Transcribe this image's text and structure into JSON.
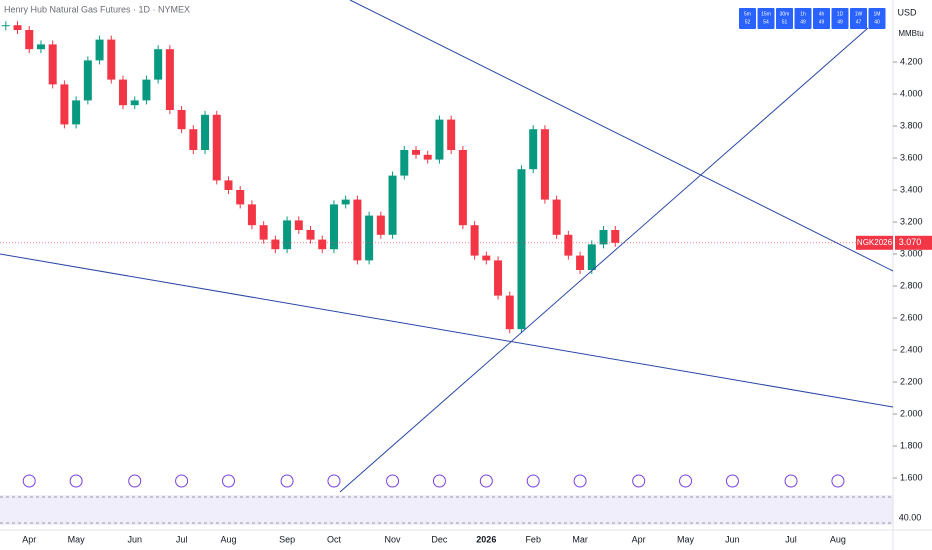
{
  "chart_data": {
    "type": "candlestick",
    "title": "Henry Hub Natural Gas Futures · 1D · NYMEX",
    "currency": "USD",
    "unit": "MMBtu",
    "symbol": "NGK2026",
    "last_price": {
      "value": 3.07,
      "label": "3.070"
    },
    "up_color": "#089981",
    "down_color": "#f23645",
    "categories": [
      null,
      null,
      "Apr",
      null,
      null,
      null,
      "May",
      null,
      null,
      null,
      null,
      "Jun",
      null,
      null,
      null,
      "Jul",
      null,
      null,
      null,
      "Aug",
      null,
      null,
      null,
      null,
      "Sep",
      null,
      null,
      null,
      "Oct",
      null,
      null,
      null,
      null,
      "Nov",
      null,
      null,
      null,
      "Dec",
      null,
      null,
      null,
      "2026",
      null,
      null,
      null,
      "Feb",
      null,
      null,
      null,
      "Mar",
      null,
      null,
      null,
      null,
      "Apr",
      null,
      null,
      null,
      "May",
      null,
      null,
      null,
      "Jun",
      null,
      null,
      null,
      null,
      "Jul",
      null,
      null,
      null,
      "Aug",
      null,
      null,
      null,
      null
    ],
    "values": [
      4.43,
      4.4,
      4.28,
      4.31,
      4.06,
      3.81,
      3.96,
      4.21,
      4.34,
      4.09,
      3.93,
      3.96,
      4.09,
      4.28,
      3.9,
      3.78,
      3.65,
      3.87,
      3.46,
      3.4,
      3.31,
      3.18,
      3.09,
      3.03,
      3.21,
      3.15,
      3.09,
      3.03,
      3.31,
      3.34,
      2.96,
      3.24,
      3.12,
      3.49,
      3.65,
      3.62,
      3.59,
      3.84,
      3.65,
      3.18,
      2.99,
      2.96,
      2.74,
      2.53,
      3.53,
      3.78,
      3.34,
      3.12,
      2.99,
      2.9,
      3.06,
      3.15,
      3.07,
      null,
      null,
      null,
      null,
      null,
      null,
      null,
      null,
      null,
      null,
      null,
      null,
      null,
      null,
      null,
      null,
      null,
      null,
      null,
      null,
      null,
      null,
      null
    ],
    "ylim": [
      1.525,
      4.5875
    ],
    "yticks": [
      {
        "value": 1.6,
        "label": "1.600"
      },
      {
        "value": 1.8,
        "label": "1.800"
      },
      {
        "value": 2.0,
        "label": "2.000"
      },
      {
        "value": 2.2,
        "label": "2.200"
      },
      {
        "value": 2.4,
        "label": "2.400"
      },
      {
        "value": 2.6,
        "label": "2.600"
      },
      {
        "value": 2.8,
        "label": "2.800"
      },
      {
        "value": 3.0,
        "label": "3.000"
      },
      {
        "value": 3.2,
        "label": "3.200"
      },
      {
        "value": 3.4,
        "label": "3.400"
      },
      {
        "value": 3.6,
        "label": "3.600"
      },
      {
        "value": 3.8,
        "label": "3.800"
      },
      {
        "value": 4.0,
        "label": "4.000"
      },
      {
        "value": 4.2,
        "label": "4.200"
      }
    ],
    "rsi_label": "40.00",
    "timeframes": [
      [
        "5m",
        "52"
      ],
      [
        "15m",
        "54"
      ],
      [
        "30m",
        "51"
      ],
      [
        "1h",
        "49"
      ],
      [
        "4h",
        "49"
      ],
      [
        "1D",
        "49"
      ],
      [
        "1W",
        "47"
      ],
      [
        "1M",
        "40"
      ]
    ]
  }
}
